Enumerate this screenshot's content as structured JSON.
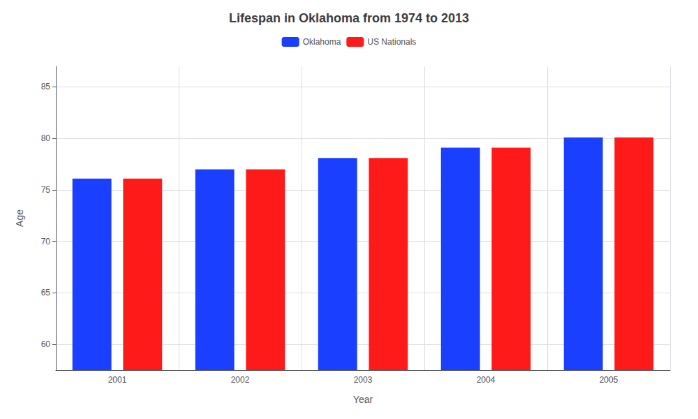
{
  "chart_data": {
    "type": "bar",
    "title": "Lifespan in Oklahoma from 1974 to 2013",
    "xlabel": "Year",
    "ylabel": "Age",
    "categories": [
      "2001",
      "2002",
      "2003",
      "2004",
      "2005"
    ],
    "series": [
      {
        "name": "Oklahoma",
        "color": "#1a3fff",
        "values": [
          76.1,
          77.0,
          78.1,
          79.1,
          80.1
        ]
      },
      {
        "name": "US Nationals",
        "color": "#ff1a1a",
        "values": [
          76.1,
          77.0,
          78.1,
          79.1,
          80.1
        ]
      }
    ],
    "ylim": [
      57.5,
      87
    ],
    "yticks": [
      60,
      65,
      70,
      75,
      80,
      85
    ],
    "grid": true,
    "legend": "top"
  }
}
